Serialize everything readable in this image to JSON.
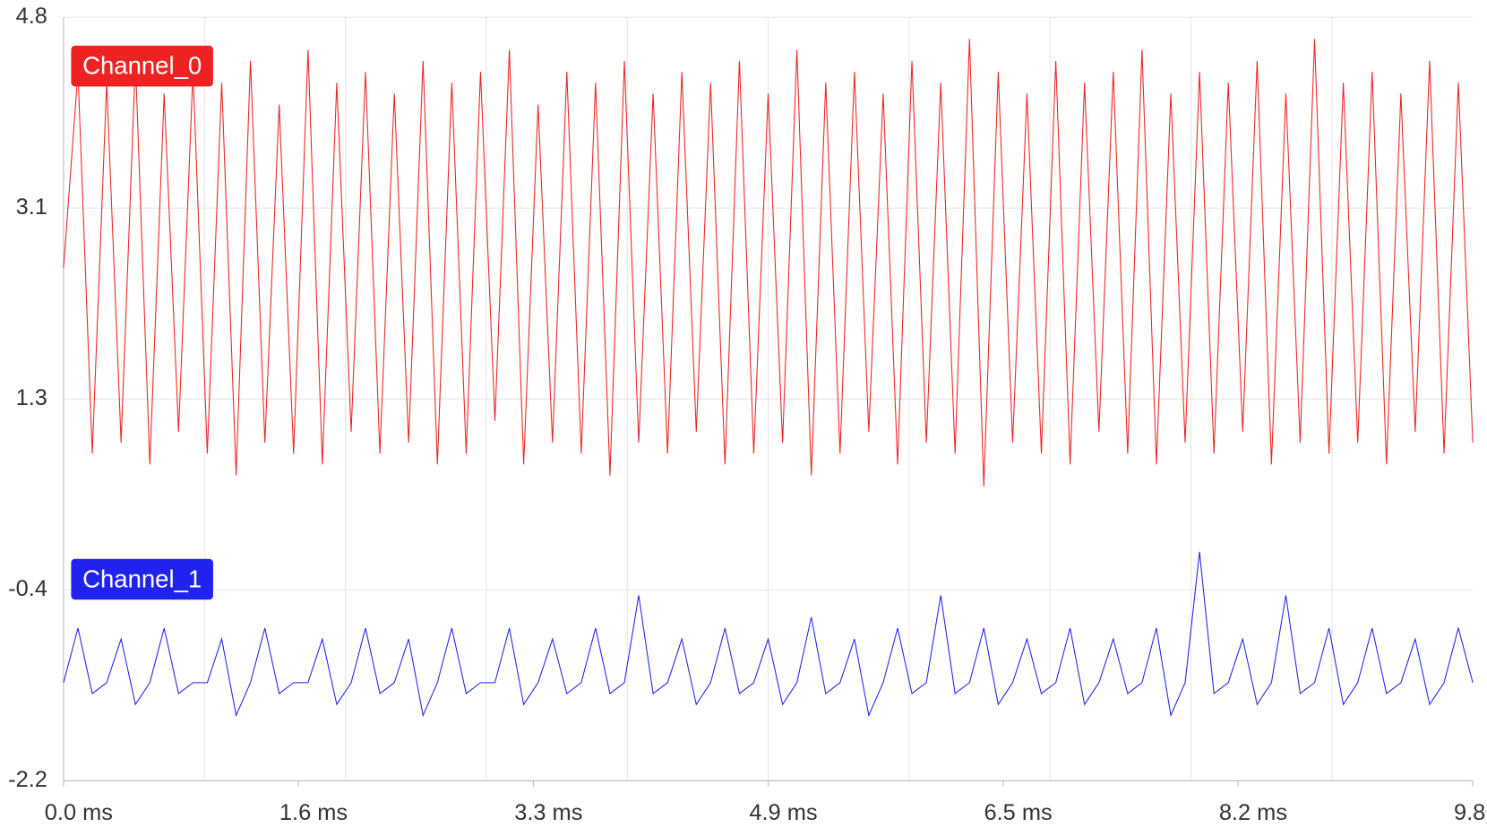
{
  "chart_data": {
    "type": "line",
    "x": [
      0,
      0.1,
      0.2,
      0.3,
      0.4,
      0.5,
      0.6,
      0.7,
      0.8,
      0.9,
      1.0,
      1.1,
      1.2,
      1.3,
      1.4,
      1.5,
      1.6,
      1.7,
      1.8,
      1.9,
      2.0,
      2.1,
      2.2,
      2.3,
      2.4,
      2.5,
      2.6,
      2.7,
      2.8,
      2.9,
      3.0,
      3.1,
      3.2,
      3.3,
      3.4,
      3.5,
      3.6,
      3.7,
      3.8,
      3.9,
      4.0,
      4.1,
      4.2,
      4.3,
      4.4,
      4.5,
      4.6,
      4.7,
      4.8,
      4.9,
      5.0,
      5.1,
      5.2,
      5.3,
      5.4,
      5.5,
      5.6,
      5.7,
      5.8,
      5.9,
      6.0,
      6.1,
      6.2,
      6.3,
      6.4,
      6.5,
      6.6,
      6.7,
      6.8,
      6.9,
      7.0,
      7.1,
      7.2,
      7.3,
      7.4,
      7.5,
      7.6,
      7.7,
      7.8,
      7.9,
      8.0,
      8.1,
      8.2,
      8.3,
      8.4,
      8.5,
      8.6,
      8.7,
      8.8,
      8.9,
      9.0,
      9.1,
      9.2,
      9.3,
      9.4,
      9.5,
      9.6,
      9.7,
      9.8
    ],
    "series": [
      {
        "name": "Channel_0",
        "color": "#ee2222",
        "values": [
          2.5,
          4.3,
          0.8,
          4.2,
          0.9,
          4.4,
          0.7,
          4.1,
          1.0,
          4.3,
          0.8,
          4.2,
          0.6,
          4.4,
          0.9,
          4.0,
          0.8,
          4.5,
          0.7,
          4.2,
          1.0,
          4.3,
          0.8,
          4.1,
          0.9,
          4.4,
          0.7,
          4.2,
          0.8,
          4.3,
          1.1,
          4.5,
          0.7,
          4.0,
          0.9,
          4.3,
          0.8,
          4.2,
          0.6,
          4.4,
          0.9,
          4.1,
          0.8,
          4.3,
          1.0,
          4.2,
          0.7,
          4.4,
          0.8,
          4.1,
          0.9,
          4.5,
          0.6,
          4.2,
          0.8,
          4.3,
          1.0,
          4.1,
          0.7,
          4.4,
          0.9,
          4.2,
          0.8,
          4.6,
          0.5,
          4.3,
          0.9,
          4.1,
          0.8,
          4.4,
          0.7,
          4.2,
          1.0,
          4.3,
          0.8,
          4.5,
          0.7,
          4.1,
          0.9,
          4.3,
          0.8,
          4.2,
          1.0,
          4.4,
          0.7,
          4.1,
          0.9,
          4.6,
          0.8,
          4.2,
          0.9,
          4.3,
          0.7,
          4.1,
          1.0,
          4.4,
          0.8,
          4.2,
          0.9
        ]
      },
      {
        "name": "Channel_1",
        "color": "#2222ee",
        "values": [
          -1.3,
          -0.8,
          -1.4,
          -1.3,
          -0.9,
          -1.5,
          -1.3,
          -0.8,
          -1.4,
          -1.3,
          -1.3,
          -0.9,
          -1.6,
          -1.3,
          -0.8,
          -1.4,
          -1.3,
          -1.3,
          -0.9,
          -1.5,
          -1.3,
          -0.8,
          -1.4,
          -1.3,
          -0.9,
          -1.6,
          -1.3,
          -0.8,
          -1.4,
          -1.3,
          -1.3,
          -0.8,
          -1.5,
          -1.3,
          -0.9,
          -1.4,
          -1.3,
          -0.8,
          -1.4,
          -1.3,
          -0.5,
          -1.4,
          -1.3,
          -0.9,
          -1.5,
          -1.3,
          -0.8,
          -1.4,
          -1.3,
          -0.9,
          -1.5,
          -1.3,
          -0.7,
          -1.4,
          -1.3,
          -0.9,
          -1.6,
          -1.3,
          -0.8,
          -1.4,
          -1.3,
          -0.5,
          -1.4,
          -1.3,
          -0.8,
          -1.5,
          -1.3,
          -0.9,
          -1.4,
          -1.3,
          -0.8,
          -1.5,
          -1.3,
          -0.9,
          -1.4,
          -1.3,
          -0.8,
          -1.6,
          -1.3,
          -0.1,
          -1.4,
          -1.3,
          -0.9,
          -1.5,
          -1.3,
          -0.5,
          -1.4,
          -1.3,
          -0.8,
          -1.5,
          -1.3,
          -0.8,
          -1.4,
          -1.3,
          -0.9,
          -1.5,
          -1.3,
          -0.8,
          -1.3
        ]
      }
    ],
    "xlim": [
      0,
      9.8
    ],
    "xticks": [
      {
        "value": 0,
        "label": "0.0 ms"
      },
      {
        "value": 1.633,
        "label": "1.6 ms"
      },
      {
        "value": 3.267,
        "label": "3.3 ms"
      },
      {
        "value": 4.9,
        "label": "4.9 ms"
      },
      {
        "value": 6.533,
        "label": "6.5 ms"
      },
      {
        "value": 8.167,
        "label": "8.2 ms"
      },
      {
        "value": 9.8,
        "label": "9.8 ms"
      }
    ],
    "xgrid": [
      0.98,
      1.96,
      2.94,
      3.92,
      4.9,
      5.88,
      6.86,
      7.84,
      8.82
    ],
    "ylim": [
      -2.2,
      4.8
    ],
    "yticks": [
      4.8,
      {
        "value": 3.05,
        "label": "3.1"
      },
      1.3,
      {
        "value": -0.45,
        "label": "-0.4"
      },
      -2.2
    ],
    "grid": true
  }
}
